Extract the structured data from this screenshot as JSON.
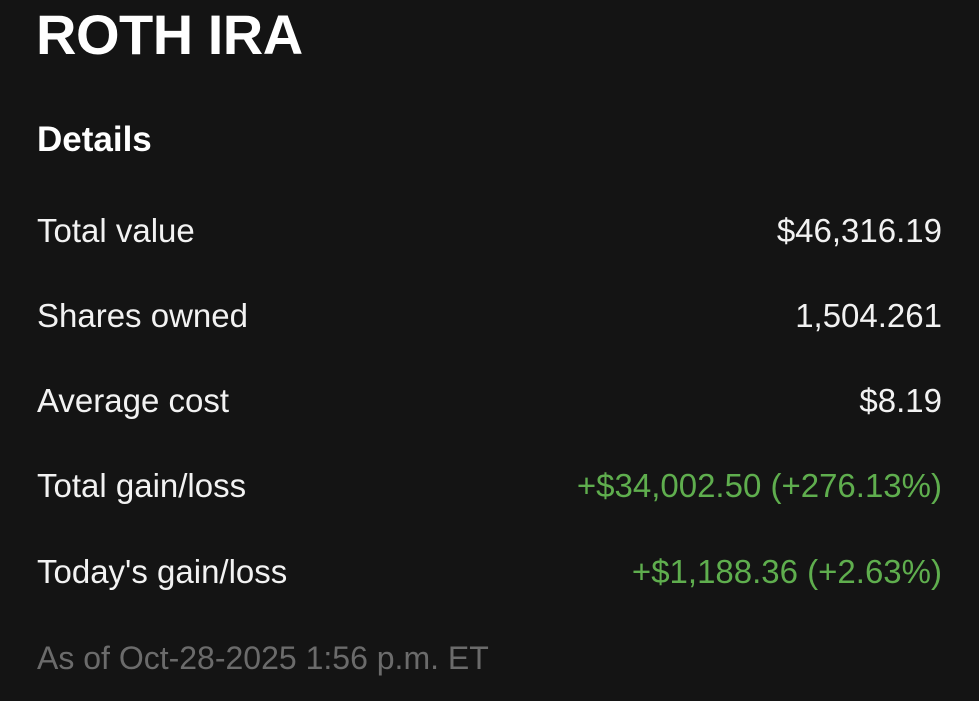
{
  "account": {
    "title": "ROTH IRA"
  },
  "details": {
    "heading": "Details",
    "rows": [
      {
        "label": "Total value",
        "value": "$46,316.19",
        "tone": "neutral"
      },
      {
        "label": "Shares owned",
        "value": "1,504.261",
        "tone": "neutral"
      },
      {
        "label": "Average cost",
        "value": "$8.19",
        "tone": "neutral"
      },
      {
        "label": "Total gain/loss",
        "value": "+$34,002.50 (+276.13%)",
        "tone": "positive"
      },
      {
        "label": "Today's gain/loss",
        "value": "+$1,188.36 (+2.63%)",
        "tone": "positive"
      }
    ],
    "as_of": "As of Oct-28-2025 1:56 p.m. ET"
  },
  "colors": {
    "background": "#141414",
    "text": "#f2f2f2",
    "positive": "#5fae4e",
    "muted": "#6b6b6b"
  }
}
